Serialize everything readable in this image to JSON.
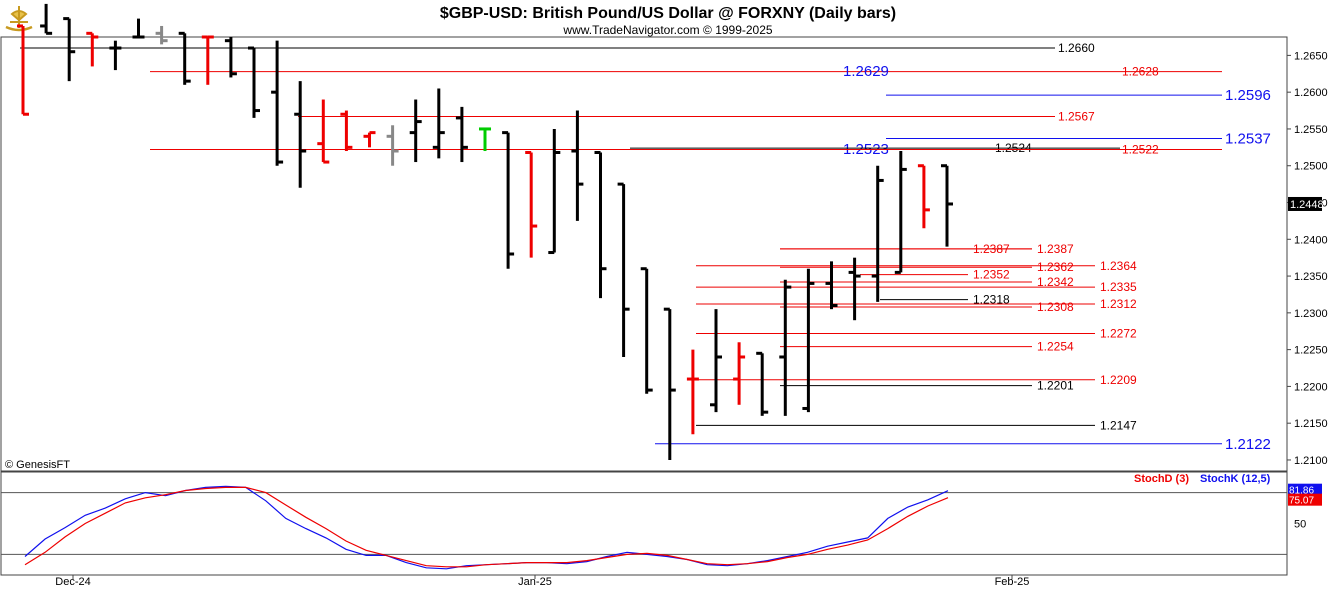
{
  "header": {
    "title": "$GBP-USD:  British Pound/US Dollar @ FORXNY  (Daily bars)",
    "subtitle": "www.TradeNavigator.com © 1999-2025",
    "logo_icon": "sailing-ship-logo-icon"
  },
  "watermark": "© GenesisFT",
  "colors": {
    "up_bar": "#000000",
    "down_bar": "#ee0000",
    "neutral_bar": "#888888",
    "signal_bar": "#00cc00",
    "blue_level": "#1010ee",
    "red_level": "#ee0000",
    "black_level": "#000000",
    "stoch_d": "#ee0000",
    "stoch_k": "#1010ee"
  },
  "chart_data": [
    {
      "type": "ohlc",
      "title": "$GBP-USD:  British Pound/US Dollar @ FORXNY  (Daily bars)",
      "ylim": [
        1.2085,
        1.2675
      ],
      "y_ticks": [
        "1.2650",
        "1.2600",
        "1.2550",
        "1.2500",
        "1.2450",
        "1.2400",
        "1.2350",
        "1.2300",
        "1.2250",
        "1.2200",
        "1.2150",
        "1.2100"
      ],
      "x_ticks": [
        "Dec-24",
        "Jan-25",
        "Feb-25"
      ],
      "last_price": "1.2448",
      "bars": [
        {
          "o": 1.269,
          "h": 1.269,
          "l": 1.257,
          "c": 1.257,
          "color": "red"
        },
        {
          "o": 1.269,
          "h": 1.272,
          "l": 1.268,
          "c": 1.268,
          "color": "black"
        },
        {
          "o": 1.27,
          "h": 1.27,
          "l": 1.2615,
          "c": 1.2655,
          "color": "black"
        },
        {
          "o": 1.268,
          "h": 1.268,
          "l": 1.2635,
          "c": 1.2675,
          "color": "red"
        },
        {
          "o": 1.266,
          "h": 1.267,
          "l": 1.263,
          "c": 1.266,
          "color": "black"
        },
        {
          "o": 1.2675,
          "h": 1.27,
          "l": 1.2675,
          "c": 1.2675,
          "color": "black"
        },
        {
          "o": 1.268,
          "h": 1.269,
          "l": 1.2665,
          "c": 1.267,
          "color": "gray"
        },
        {
          "o": 1.268,
          "h": 1.268,
          "l": 1.261,
          "c": 1.2615,
          "color": "black"
        },
        {
          "o": 1.2675,
          "h": 1.2675,
          "l": 1.261,
          "c": 1.2675,
          "color": "red"
        },
        {
          "o": 1.267,
          "h": 1.2675,
          "l": 1.262,
          "c": 1.2625,
          "color": "black"
        },
        {
          "o": 1.266,
          "h": 1.266,
          "l": 1.2565,
          "c": 1.2575,
          "color": "black"
        },
        {
          "o": 1.26,
          "h": 1.267,
          "l": 1.25,
          "c": 1.2505,
          "color": "black"
        },
        {
          "o": 1.257,
          "h": 1.2615,
          "l": 1.247,
          "c": 1.252,
          "color": "black"
        },
        {
          "o": 1.253,
          "h": 1.259,
          "l": 1.2505,
          "c": 1.2505,
          "color": "red"
        },
        {
          "o": 1.257,
          "h": 1.2575,
          "l": 1.252,
          "c": 1.2525,
          "color": "red"
        },
        {
          "o": 1.254,
          "h": 1.2545,
          "l": 1.2525,
          "c": 1.2545,
          "color": "red"
        },
        {
          "o": 1.254,
          "h": 1.2555,
          "l": 1.25,
          "c": 1.252,
          "color": "gray"
        },
        {
          "o": 1.2545,
          "h": 1.259,
          "l": 1.2505,
          "c": 1.256,
          "color": "black"
        },
        {
          "o": 1.2525,
          "h": 1.2605,
          "l": 1.251,
          "c": 1.2545,
          "color": "black"
        },
        {
          "o": 1.2565,
          "h": 1.258,
          "l": 1.2505,
          "c": 1.2525,
          "color": "black"
        },
        {
          "o": 1.255,
          "h": 1.255,
          "l": 1.252,
          "c": 1.255,
          "color": "green"
        },
        {
          "o": 1.2545,
          "h": 1.2545,
          "l": 1.236,
          "c": 1.238,
          "color": "black"
        },
        {
          "o": 1.2518,
          "h": 1.2518,
          "l": 1.2375,
          "c": 1.2418,
          "color": "red"
        },
        {
          "o": 1.2382,
          "h": 1.255,
          "l": 1.2382,
          "c": 1.2518,
          "color": "black"
        },
        {
          "o": 1.252,
          "h": 1.2575,
          "l": 1.2425,
          "c": 1.2475,
          "color": "black"
        },
        {
          "o": 1.2518,
          "h": 1.2518,
          "l": 1.232,
          "c": 1.236,
          "color": "black"
        },
        {
          "o": 1.2475,
          "h": 1.2475,
          "l": 1.224,
          "c": 1.2305,
          "color": "black"
        },
        {
          "o": 1.236,
          "h": 1.236,
          "l": 1.219,
          "c": 1.2195,
          "color": "black"
        },
        {
          "o": 1.2305,
          "h": 1.2305,
          "l": 1.21,
          "c": 1.2195,
          "color": "black"
        },
        {
          "o": 1.221,
          "h": 1.225,
          "l": 1.2135,
          "c": 1.221,
          "color": "red"
        },
        {
          "o": 1.2175,
          "h": 1.2305,
          "l": 1.2165,
          "c": 1.224,
          "color": "black"
        },
        {
          "o": 1.221,
          "h": 1.226,
          "l": 1.2175,
          "c": 1.224,
          "color": "red"
        },
        {
          "o": 1.2245,
          "h": 1.2245,
          "l": 1.216,
          "c": 1.2165,
          "color": "black"
        },
        {
          "o": 1.224,
          "h": 1.2345,
          "l": 1.216,
          "c": 1.2335,
          "color": "black"
        },
        {
          "o": 1.217,
          "h": 1.236,
          "l": 1.2165,
          "c": 1.234,
          "color": "black"
        },
        {
          "o": 1.234,
          "h": 1.237,
          "l": 1.2305,
          "c": 1.231,
          "color": "black"
        },
        {
          "o": 1.2355,
          "h": 1.2375,
          "l": 1.229,
          "c": 1.235,
          "color": "black"
        },
        {
          "o": 1.235,
          "h": 1.25,
          "l": 1.2315,
          "c": 1.248,
          "color": "black"
        },
        {
          "o": 1.2355,
          "h": 1.252,
          "l": 1.2355,
          "c": 1.2495,
          "color": "black"
        },
        {
          "o": 1.25,
          "h": 1.25,
          "l": 1.2415,
          "c": 1.244,
          "color": "red"
        },
        {
          "o": 1.25,
          "h": 1.25,
          "l": 1.239,
          "c": 1.2448,
          "color": "black"
        }
      ],
      "levels": [
        {
          "price": 1.266,
          "label": "1.2660",
          "color": "black",
          "from": 20,
          "to": 1055,
          "label_pos": 1058
        },
        {
          "price": 1.2628,
          "label": "1.2628",
          "color": "red",
          "from": 150,
          "to": 1222,
          "label_pos": 1122
        },
        {
          "price": 1.2629,
          "label": "1.2629",
          "color": "blue",
          "from": 843,
          "to": 843,
          "label_pos": 843,
          "big": true
        },
        {
          "price": 1.2596,
          "label": "1.2596",
          "color": "blue",
          "from": 886,
          "to": 1222,
          "label_pos": 1225,
          "big": true
        },
        {
          "price": 1.2567,
          "label": "1.2567",
          "color": "red",
          "from": 298,
          "to": 1055,
          "label_pos": 1058
        },
        {
          "price": 1.2537,
          "label": "1.2537",
          "color": "blue",
          "from": 886,
          "to": 1222,
          "label_pos": 1225,
          "big": true
        },
        {
          "price": 1.2523,
          "label": "1.2523",
          "color": "blue",
          "from": 843,
          "to": 843,
          "label_pos": 843,
          "big": true
        },
        {
          "price": 1.2524,
          "label": "1.2524",
          "color": "black",
          "from": 630,
          "to": 1120,
          "label_pos": 995
        },
        {
          "price": 1.2522,
          "label": "1.2522",
          "color": "red",
          "from": 150,
          "to": 1222,
          "label_pos": 1122
        },
        {
          "price": 1.2387,
          "label": "1.2387",
          "color": "red",
          "from": 780,
          "to": 1032,
          "label_pos": 1037
        },
        {
          "price": 1.2387,
          "label": "1.2387",
          "color": "red",
          "from": 780,
          "to": 1032,
          "label_pos": 973
        },
        {
          "price": 1.2364,
          "label": "1.2364",
          "color": "red",
          "from": 696,
          "to": 1095,
          "label_pos": 1100
        },
        {
          "price": 1.2362,
          "label": "1.2362",
          "color": "red",
          "from": 780,
          "to": 1032,
          "label_pos": 1037
        },
        {
          "price": 1.2352,
          "label": "1.2352",
          "color": "red",
          "from": 860,
          "to": 968,
          "label_pos": 973
        },
        {
          "price": 1.2342,
          "label": "1.2342",
          "color": "red",
          "from": 780,
          "to": 1032,
          "label_pos": 1037
        },
        {
          "price": 1.2335,
          "label": "1.2335",
          "color": "red",
          "from": 696,
          "to": 1095,
          "label_pos": 1100
        },
        {
          "price": 1.2318,
          "label": "1.2318",
          "color": "black",
          "from": 880,
          "to": 968,
          "label_pos": 973
        },
        {
          "price": 1.2312,
          "label": "1.2312",
          "color": "red",
          "from": 696,
          "to": 1095,
          "label_pos": 1100
        },
        {
          "price": 1.2308,
          "label": "1.2308",
          "color": "red",
          "from": 780,
          "to": 1032,
          "label_pos": 1037
        },
        {
          "price": 1.2272,
          "label": "1.2272",
          "color": "red",
          "from": 696,
          "to": 1095,
          "label_pos": 1100
        },
        {
          "price": 1.2254,
          "label": "1.2254",
          "color": "red",
          "from": 780,
          "to": 1032,
          "label_pos": 1037
        },
        {
          "price": 1.2209,
          "label": "1.2209",
          "color": "red",
          "from": 696,
          "to": 1095,
          "label_pos": 1100
        },
        {
          "price": 1.2201,
          "label": "1.2201",
          "color": "black",
          "from": 780,
          "to": 1032,
          "label_pos": 1037
        },
        {
          "price": 1.2147,
          "label": "1.2147",
          "color": "black",
          "from": 696,
          "to": 1095,
          "label_pos": 1100
        },
        {
          "price": 1.2122,
          "label": "1.2122",
          "color": "blue",
          "from": 655,
          "to": 1222,
          "label_pos": 1225,
          "big": true
        }
      ]
    },
    {
      "type": "line",
      "title": "Stochastic",
      "ylim": [
        0,
        100
      ],
      "y_ticks": [
        "50"
      ],
      "reference_lines": [
        20,
        80
      ],
      "legend": [
        "StochD (3)",
        "StochK (12,5)"
      ],
      "last_values": {
        "stochk": "81.86",
        "stochd": "75.07"
      },
      "series": [
        {
          "name": "StochK (12,5)",
          "color": "blue",
          "values": [
            18,
            35,
            46,
            58,
            65,
            74,
            80,
            77,
            82,
            85,
            86,
            85,
            72,
            55,
            45,
            36,
            25,
            19,
            19,
            12,
            7,
            6,
            9,
            10,
            11,
            12,
            12,
            11,
            13,
            18,
            22,
            20,
            18,
            15,
            10,
            9,
            11,
            14,
            18,
            22,
            28,
            32,
            36,
            55,
            66,
            73,
            81.86
          ]
        },
        {
          "name": "StochD (3)",
          "color": "red",
          "values": [
            10,
            22,
            37,
            50,
            60,
            70,
            75,
            78,
            82,
            84,
            85,
            85,
            80,
            68,
            56,
            45,
            33,
            24,
            19,
            14,
            9,
            8,
            8,
            10,
            11,
            12,
            12,
            12,
            14,
            17,
            20,
            21,
            19,
            15,
            11,
            10,
            11,
            13,
            17,
            20,
            25,
            29,
            34,
            45,
            57,
            67,
            75.07
          ]
        }
      ]
    }
  ]
}
